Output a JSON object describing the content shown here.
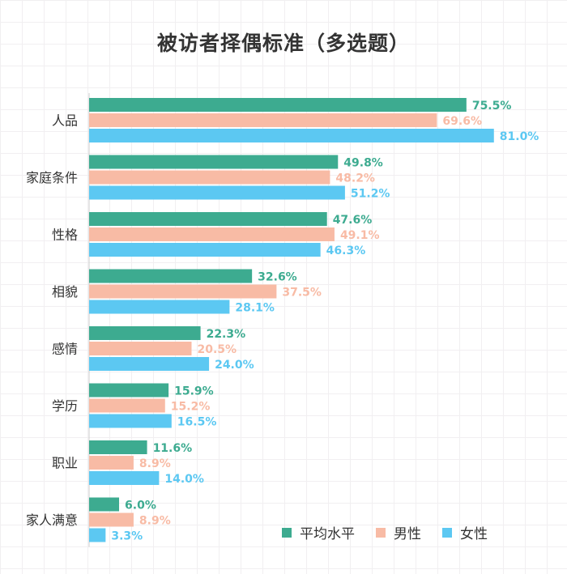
{
  "chart_data": {
    "type": "bar",
    "orientation": "horizontal",
    "title": "被访者择偶标准（多选题）",
    "categories": [
      "人品",
      "家庭条件",
      "性格",
      "相貌",
      "感情",
      "学历",
      "职业",
      "家人满意"
    ],
    "series": [
      {
        "name": "平均水平",
        "color": "#3dab90",
        "values": [
          75.5,
          49.8,
          47.6,
          32.6,
          22.3,
          15.9,
          11.6,
          6.0
        ],
        "labels": [
          "75.5%",
          "49.8%",
          "47.6%",
          "32.6%",
          "22.3%",
          "15.9%",
          "11.6%",
          "6.0%"
        ]
      },
      {
        "name": "男性",
        "color": "#f8bba5",
        "values": [
          69.6,
          48.2,
          49.1,
          37.5,
          20.5,
          15.2,
          8.9,
          8.9
        ],
        "labels": [
          "69.6%",
          "48.2%",
          "49.1%",
          "37.5%",
          "20.5%",
          "15.2%",
          "8.9%",
          "8.9%"
        ]
      },
      {
        "name": "女性",
        "color": "#5cc8f2",
        "values": [
          81.0,
          51.2,
          46.3,
          28.1,
          24.0,
          16.5,
          14.0,
          3.3
        ],
        "labels": [
          "81.0%",
          "51.2%",
          "46.3%",
          "28.1%",
          "24.0%",
          "16.5%",
          "14.0%",
          "3.3%"
        ]
      }
    ],
    "legend_position": "bottom-right",
    "grid": true
  }
}
